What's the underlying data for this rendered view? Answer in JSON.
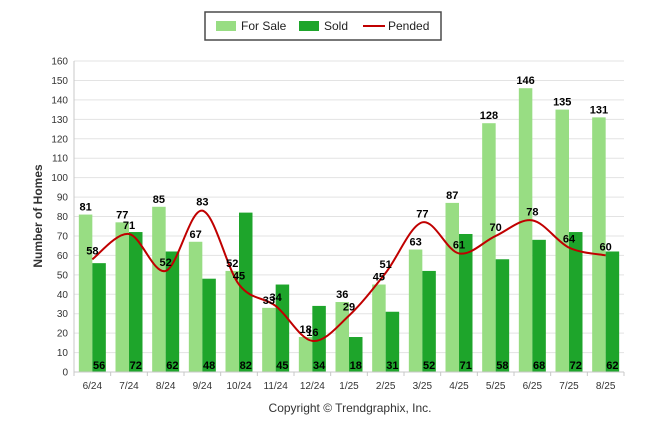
{
  "chart_data": {
    "type": "bar",
    "categories": [
      "6/24",
      "7/24",
      "8/24",
      "9/24",
      "10/24",
      "11/24",
      "12/24",
      "1/25",
      "2/25",
      "3/25",
      "4/25",
      "5/25",
      "6/25",
      "7/25",
      "8/25"
    ],
    "series": [
      {
        "name": "For Sale",
        "kind": "bar",
        "color": "#98dd83",
        "values": [
          81,
          77,
          85,
          67,
          52,
          33,
          18,
          36,
          45,
          63,
          87,
          128,
          146,
          135,
          131
        ]
      },
      {
        "name": "Sold",
        "kind": "bar",
        "color": "#1ea52b",
        "values": [
          56,
          72,
          62,
          48,
          82,
          45,
          34,
          18,
          31,
          52,
          71,
          58,
          68,
          72,
          62
        ]
      },
      {
        "name": "Pended",
        "kind": "line",
        "color": "#c00000",
        "values": [
          58,
          71,
          52,
          83,
          45,
          34,
          16,
          29,
          51,
          77,
          61,
          70,
          78,
          64,
          60
        ]
      }
    ],
    "ylabel": "Number of Homes",
    "xlabel": "",
    "ylim": [
      0,
      160
    ],
    "yticks": [
      0,
      10,
      20,
      30,
      40,
      50,
      60,
      70,
      80,
      90,
      100,
      110,
      120,
      130,
      140,
      150,
      160
    ],
    "grid": true,
    "legend": "top-center"
  },
  "footer": "Copyright © Trendgraphix, Inc."
}
